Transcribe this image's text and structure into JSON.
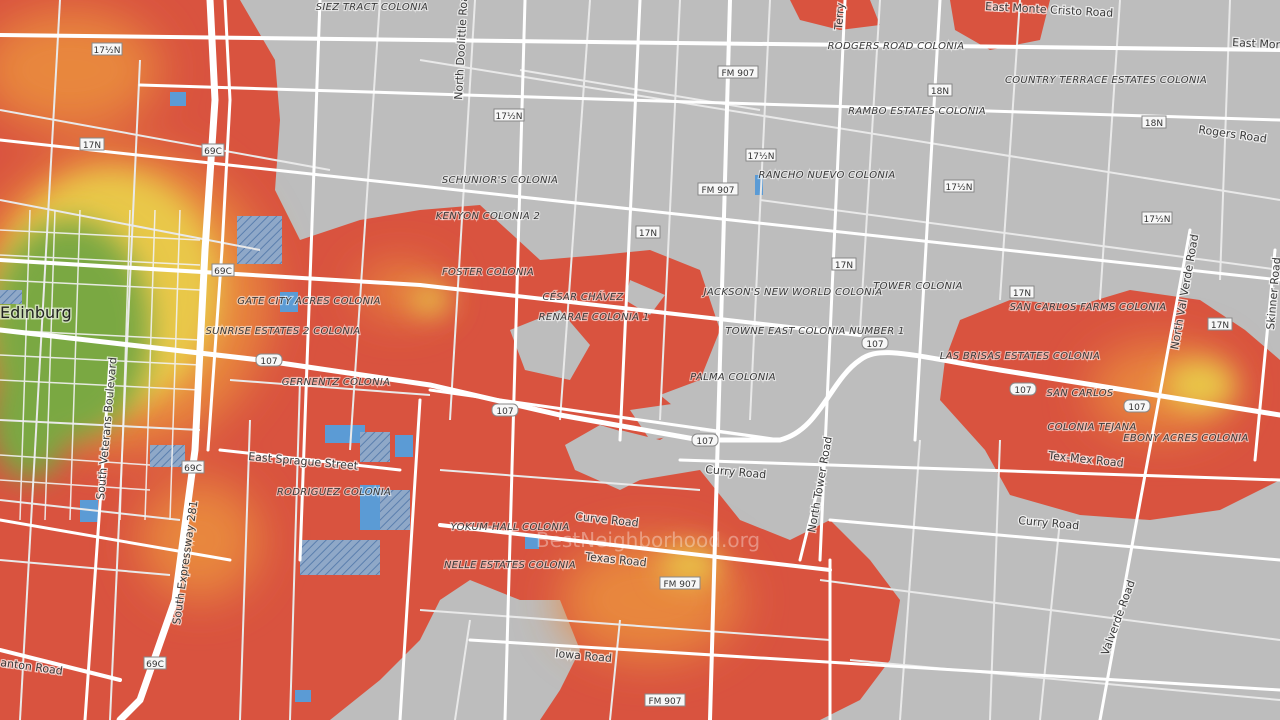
{
  "map": {
    "city_label": "Edinburg",
    "watermark": "BestNeighborhood.org",
    "colors": {
      "background": "#bdbdbd",
      "heat_red": "#d9533f",
      "heat_orange": "#e8873e",
      "heat_yellow": "#e9c84a",
      "heat_green": "#7aa843",
      "water": "#5b9bd5",
      "road": "#ffffff"
    },
    "colonias": [
      "SIEZ TRACT COLONIA",
      "RODGERS ROAD COLONIA",
      "COUNTRY TERRACE ESTATES COLONIA",
      "RAMBO ESTATES COLONIA",
      "SCHUNIOR'S COLONIA",
      "RANCHO NUEVO COLONIA",
      "KENYON COLONIA 2",
      "FOSTER COLONIA",
      "CÉSAR CHÁVEZ",
      "RENARAE COLONIA 1",
      "JACKSON'S NEW WORLD COLONIA",
      "TOWER COLONIA",
      "SAN CARLOS FARMS COLONIA",
      "GATE CITY ACRES COLONIA",
      "SUNRISE ESTATES 2 COLONIA",
      "TOWNE EAST COLONIA NUMBER 1",
      "LAS BRISAS ESTATES COLONIA",
      "PALMA COLONIA",
      "GERNENTZ COLONIA",
      "SAN CARLOS",
      "COLONIA TEJANA",
      "EBONY ACRES COLONIA",
      "RODRIGUEZ COLONIA",
      "YOKUM-HALL COLONIA",
      "NELLE ESTATES COLONIA"
    ],
    "roads": [
      "East Monte Cristo Road",
      "East Monte",
      "North Doolittle Road",
      "Terry Road",
      "Rogers Road",
      "North Val Verde Road",
      "Skinner Road",
      "South Veterans Boulevard",
      "East Sprague Street",
      "Curry Road",
      "Curve Road",
      "Texas Road",
      "Tex-Mex Road",
      "North Tower Road",
      "South Expressway 281",
      "Iowa Road",
      "Valverde Road",
      "anton Road"
    ],
    "shields": [
      "17½N",
      "17N",
      "69C",
      "FM 907",
      "18N",
      "107",
      "17N"
    ]
  }
}
